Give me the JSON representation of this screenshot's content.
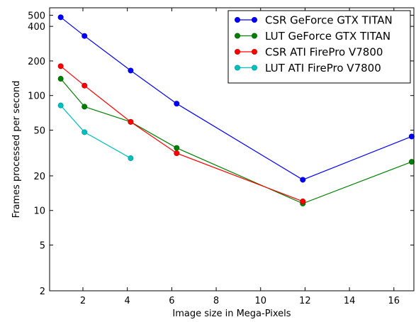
{
  "chart_data": {
    "type": "line",
    "xlabel": "Image size in Mega-Pixels",
    "ylabel": "Frames processed per second",
    "x_ticks": [
      2,
      4,
      6,
      8,
      10,
      12,
      14,
      16
    ],
    "y_ticks": [
      2,
      5,
      10,
      20,
      50,
      100,
      200,
      400,
      500
    ],
    "xlim": [
      0.5,
      16.9
    ],
    "ylim": [
      2,
      580
    ],
    "y_scale": "log",
    "grid": false,
    "legend_position": "top-right",
    "series": [
      {
        "name": "CSR GeForce GTX TITAN",
        "color": "#0000ff",
        "marker_color": "#0000cc",
        "x": [
          1.0,
          2.07,
          4.15,
          6.22,
          11.9,
          16.8
        ],
        "y": [
          480,
          330,
          165,
          85,
          18.5,
          44
        ]
      },
      {
        "name": "LUT GeForce GTX TITAN",
        "color": "#007f00",
        "marker_color": "#006600",
        "x": [
          1.0,
          2.07,
          4.15,
          6.22,
          11.9,
          16.8
        ],
        "y": [
          140,
          80,
          59,
          35,
          11.5,
          26.5
        ]
      },
      {
        "name": "CSR ATI FirePro V7800",
        "color": "#ff0000",
        "marker_color": "#cc0000",
        "x": [
          1.0,
          2.07,
          4.15,
          6.22,
          11.9
        ],
        "y": [
          180,
          122,
          59,
          31.5,
          12
        ]
      },
      {
        "name": "LUT ATI FirePro V7800",
        "color": "#00bfbf",
        "marker_color": "#009f9f",
        "x": [
          1.0,
          2.07,
          4.15
        ],
        "y": [
          82,
          48,
          28.5
        ]
      }
    ]
  }
}
